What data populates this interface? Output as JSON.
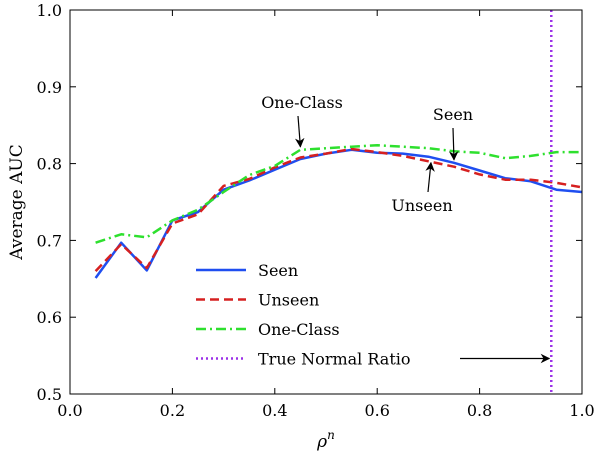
{
  "chart_data": {
    "type": "line",
    "xlabel_base": "ρ",
    "xlabel_sup": "n",
    "ylabel": "Average AUC",
    "xlim": [
      0.0,
      1.0
    ],
    "ylim": [
      0.5,
      1.0
    ],
    "xticks": [
      0.0,
      0.2,
      0.4,
      0.6,
      0.8,
      1.0
    ],
    "xtick_labels": [
      "0.0",
      "0.2",
      "0.4",
      "0.6",
      "0.8",
      "1.0"
    ],
    "yticks": [
      0.5,
      0.6,
      0.7,
      0.8,
      0.9,
      1.0
    ],
    "ytick_labels": [
      "0.5",
      "0.6",
      "0.7",
      "0.8",
      "0.9",
      "1.0"
    ],
    "grid": false,
    "legend_position": "bottom-left",
    "series": [
      {
        "name": "Seen",
        "color": "#1f4ef0",
        "style": "solid",
        "x": [
          0.05,
          0.1,
          0.15,
          0.2,
          0.25,
          0.3,
          0.35,
          0.4,
          0.45,
          0.5,
          0.55,
          0.6,
          0.65,
          0.7,
          0.75,
          0.8,
          0.85,
          0.9,
          0.95,
          1.0
        ],
        "values": [
          0.651,
          0.697,
          0.661,
          0.726,
          0.737,
          0.766,
          0.778,
          0.792,
          0.806,
          0.813,
          0.818,
          0.814,
          0.813,
          0.809,
          0.801,
          0.791,
          0.781,
          0.777,
          0.766,
          0.763
        ]
      },
      {
        "name": "Unseen",
        "color": "#d62020",
        "style": "dashed",
        "x": [
          0.05,
          0.1,
          0.15,
          0.2,
          0.25,
          0.3,
          0.35,
          0.4,
          0.45,
          0.5,
          0.55,
          0.6,
          0.65,
          0.7,
          0.75,
          0.8,
          0.85,
          0.9,
          0.95,
          1.0
        ],
        "values": [
          0.66,
          0.695,
          0.664,
          0.722,
          0.734,
          0.771,
          0.78,
          0.795,
          0.808,
          0.813,
          0.819,
          0.815,
          0.81,
          0.803,
          0.796,
          0.786,
          0.779,
          0.779,
          0.775,
          0.769
        ]
      },
      {
        "name": "One-Class",
        "color": "#2ee02e",
        "style": "dashdot",
        "x": [
          0.05,
          0.1,
          0.15,
          0.2,
          0.25,
          0.3,
          0.35,
          0.4,
          0.45,
          0.5,
          0.55,
          0.6,
          0.65,
          0.7,
          0.75,
          0.8,
          0.85,
          0.9,
          0.95,
          1.0
        ],
        "values": [
          0.697,
          0.708,
          0.704,
          0.726,
          0.74,
          0.763,
          0.785,
          0.797,
          0.818,
          0.82,
          0.822,
          0.824,
          0.822,
          0.82,
          0.816,
          0.814,
          0.807,
          0.81,
          0.815,
          0.815
        ]
      }
    ],
    "reference_line": {
      "name": "True Normal Ratio",
      "color": "#9b30e8",
      "style": "dotted",
      "x": 0.94
    },
    "annotations": [
      {
        "text": "One-Class",
        "series": "One-Class",
        "target": [
          0.45,
          0.818
        ]
      },
      {
        "text": "Seen",
        "series": "Seen",
        "target": [
          0.75,
          0.801
        ]
      },
      {
        "text": "Unseen",
        "series": "Unseen",
        "target": [
          0.705,
          0.805
        ]
      }
    ]
  }
}
